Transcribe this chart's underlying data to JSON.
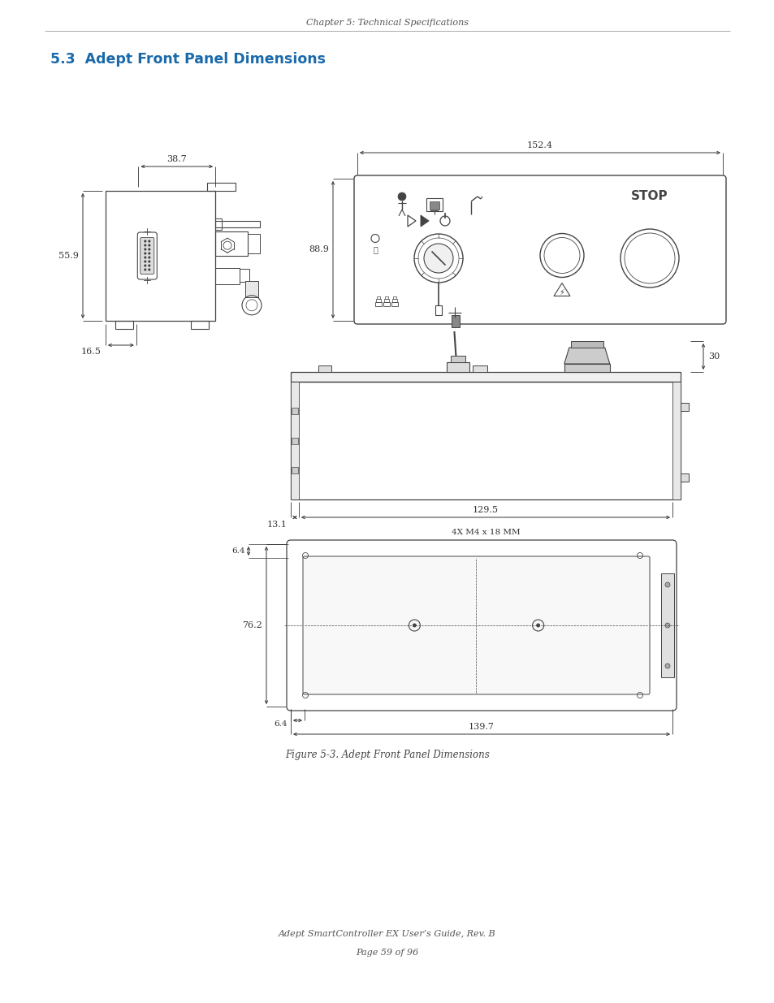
{
  "page_header": "Chapter 5: Technical Specifications",
  "section_title": "5.3  Adept Front Panel Dimensions",
  "section_title_color": "#1a6aab",
  "figure_caption": "Figure 5-3. Adept Front Panel Dimensions",
  "footer_line1": "Adept SmartController EX User’s Guide, Rev. B",
  "footer_line2": "Page 59 of 96",
  "bg_color": "#ffffff",
  "lc": "#444444",
  "dim_color": "#333333"
}
